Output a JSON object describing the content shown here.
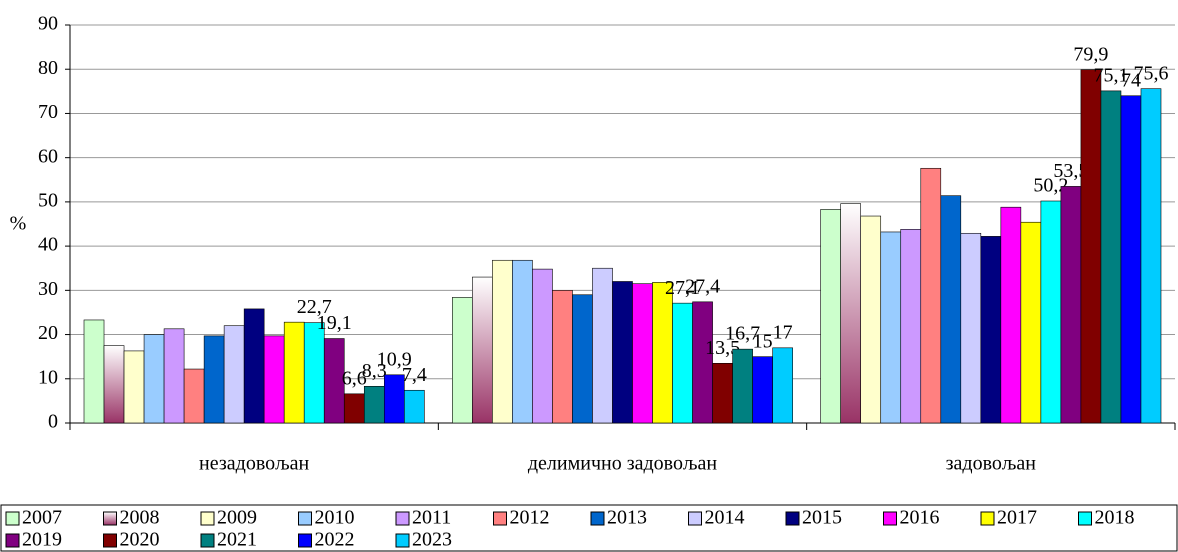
{
  "chart_data": {
    "type": "bar",
    "y_label": "%",
    "categories": [
      "незадовољан",
      "делимично задовољан",
      "задовољан"
    ],
    "ylim": [
      0,
      90
    ],
    "yticks": [
      0,
      10,
      20,
      30,
      40,
      50,
      60,
      70,
      80,
      90
    ],
    "grid": true,
    "series": [
      {
        "name": "2007",
        "color": "#ccffcc",
        "values": [
          23.3,
          28.4,
          48.3
        ]
      },
      {
        "name": "2008",
        "color": "#993366",
        "gradient": true,
        "values": [
          17.5,
          33,
          49.6
        ]
      },
      {
        "name": "2009",
        "color": "#ffffcc",
        "values": [
          16.3,
          36.8,
          46.8
        ]
      },
      {
        "name": "2010",
        "color": "#99ccff",
        "values": [
          20,
          36.8,
          43.2
        ]
      },
      {
        "name": "2011",
        "color": "#cc99ff",
        "values": [
          21.3,
          34.8,
          43.8
        ]
      },
      {
        "name": "2012",
        "color": "#ff8080",
        "values": [
          12.2,
          30,
          57.6
        ]
      },
      {
        "name": "2013",
        "color": "#0066cc",
        "values": [
          19.7,
          29,
          51.4
        ]
      },
      {
        "name": "2014",
        "color": "#ccccff",
        "values": [
          22,
          35,
          42.9
        ]
      },
      {
        "name": "2015",
        "color": "#000080",
        "values": [
          25.8,
          32,
          42.2
        ]
      },
      {
        "name": "2016",
        "color": "#ff00ff",
        "values": [
          19.7,
          31.5,
          48.8
        ]
      },
      {
        "name": "2017",
        "color": "#ffff00",
        "values": [
          22.8,
          31.8,
          45.4
        ]
      },
      {
        "name": "2018",
        "color": "#00ffff",
        "values": [
          22.7,
          27.1,
          50.2
        ],
        "value_labels": [
          "22,7",
          "27,1",
          "50,2"
        ]
      },
      {
        "name": "2019",
        "color": "#800080",
        "values": [
          19.1,
          27.4,
          53.5
        ],
        "value_labels": [
          "19,1",
          "27,4",
          "53,5"
        ]
      },
      {
        "name": "2020",
        "color": "#800000",
        "values": [
          6.6,
          13.5,
          79.9
        ],
        "value_labels": [
          "6,6",
          "13,5",
          "79,9"
        ]
      },
      {
        "name": "2021",
        "color": "#008080",
        "values": [
          8.3,
          16.7,
          75.1
        ],
        "value_labels": [
          "8,3",
          "16,7",
          "75,1"
        ]
      },
      {
        "name": "2022",
        "color": "#0000ff",
        "values": [
          10.9,
          15,
          74
        ],
        "value_labels": [
          "10,9",
          "15",
          "74"
        ]
      },
      {
        "name": "2023",
        "color": "#00ccff",
        "values": [
          7.4,
          17,
          75.6
        ],
        "value_labels": [
          "7,4",
          "17",
          "75,6"
        ]
      }
    ]
  }
}
